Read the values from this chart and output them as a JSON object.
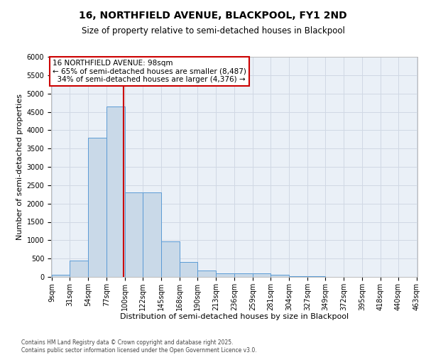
{
  "title1": "16, NORTHFIELD AVENUE, BLACKPOOL, FY1 2ND",
  "title2": "Size of property relative to semi-detached houses in Blackpool",
  "xlabel": "Distribution of semi-detached houses by size in Blackpool",
  "ylabel": "Number of semi-detached properties",
  "property_label": "16 NORTHFIELD AVENUE: 98sqm",
  "pct_smaller": 65,
  "count_smaller": 8487,
  "pct_larger": 34,
  "count_larger": 4376,
  "bar_left_edges": [
    9,
    31,
    54,
    77,
    100,
    122,
    145,
    168,
    190,
    213,
    236,
    259,
    281,
    304,
    327,
    349,
    372,
    395,
    418,
    440
  ],
  "bar_widths": [
    22,
    23,
    23,
    23,
    22,
    23,
    23,
    22,
    23,
    23,
    23,
    22,
    23,
    23,
    22,
    23,
    23,
    23,
    22,
    23
  ],
  "bar_heights": [
    50,
    450,
    3800,
    4650,
    2300,
    2300,
    975,
    400,
    175,
    100,
    100,
    100,
    50,
    25,
    10,
    5,
    5,
    5,
    5,
    5
  ],
  "bar_color": "#c9d9e8",
  "bar_edge_color": "#5b9bd5",
  "vline_color": "#cc0000",
  "vline_x": 98,
  "ylim": [
    0,
    6000
  ],
  "yticks": [
    0,
    500,
    1000,
    1500,
    2000,
    2500,
    3000,
    3500,
    4000,
    4500,
    5000,
    5500,
    6000
  ],
  "xtick_labels": [
    "9sqm",
    "31sqm",
    "54sqm",
    "77sqm",
    "100sqm",
    "122sqm",
    "145sqm",
    "168sqm",
    "190sqm",
    "213sqm",
    "236sqm",
    "259sqm",
    "281sqm",
    "304sqm",
    "327sqm",
    "349sqm",
    "372sqm",
    "395sqm",
    "418sqm",
    "440sqm",
    "463sqm"
  ],
  "grid_color": "#d0d8e4",
  "bg_color": "#eaf0f7",
  "box_color": "#cc0000",
  "footnote": "Contains HM Land Registry data © Crown copyright and database right 2025.\nContains public sector information licensed under the Open Government Licence v3.0.",
  "title1_fontsize": 10,
  "title2_fontsize": 8.5,
  "axis_label_fontsize": 8,
  "tick_fontsize": 7,
  "annotation_fontsize": 7.5,
  "footnote_fontsize": 5.5
}
